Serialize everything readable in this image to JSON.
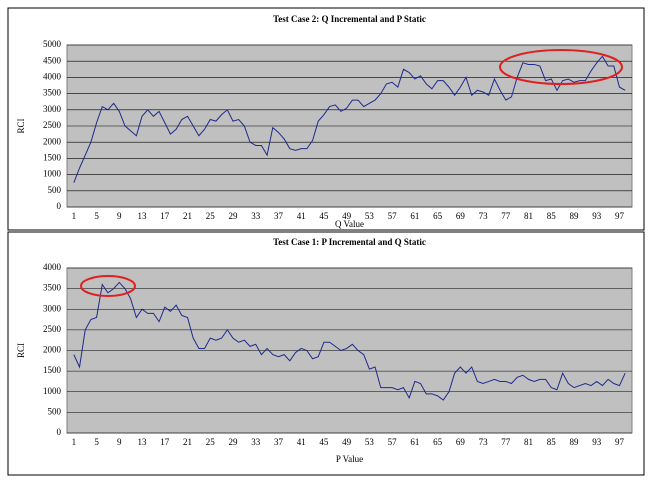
{
  "chart_data": [
    {
      "type": "line",
      "title": "Test Case 2: Q Incremental and P Static",
      "x_label": "Q Value",
      "y_label": "RCI",
      "categories": [
        "1",
        null,
        null,
        null,
        "5",
        null,
        null,
        null,
        "9",
        null,
        null,
        null,
        "13",
        null,
        null,
        null,
        "17",
        null,
        null,
        null,
        "21",
        null,
        null,
        null,
        "25",
        null,
        null,
        null,
        "29",
        null,
        null,
        null,
        "33",
        null,
        null,
        null,
        "37",
        null,
        null,
        null,
        "41",
        null,
        null,
        null,
        "45",
        null,
        null,
        null,
        "49",
        null,
        null,
        null,
        "53",
        null,
        null,
        null,
        "57",
        null,
        null,
        null,
        "61",
        null,
        null,
        null,
        "65",
        null,
        null,
        null,
        "69",
        null,
        null,
        null,
        "73",
        null,
        null,
        null,
        "77",
        null,
        null,
        null,
        "81",
        null,
        null,
        null,
        "85",
        null,
        null,
        null,
        "89",
        null,
        null,
        null,
        "93",
        null,
        null,
        null,
        "97",
        null
      ],
      "series": [
        {
          "color": "#1f2a8c",
          "values": [
            750,
            1200,
            1600,
            2000,
            2600,
            3100,
            3000,
            3200,
            2950,
            2500,
            2350,
            2200,
            2800,
            3000,
            2800,
            2950,
            2600,
            2250,
            2400,
            2700,
            2800,
            2500,
            2200,
            2400,
            2700,
            2650,
            2850,
            3000,
            2650,
            2700,
            2500,
            2000,
            1900,
            1900,
            1600,
            2450,
            2300,
            2100,
            1800,
            1750,
            1800,
            1800,
            2050,
            2650,
            2850,
            3100,
            3150,
            2950,
            3050,
            3300,
            3300,
            3100,
            3200,
            3300,
            3500,
            3800,
            3850,
            3700,
            4250,
            4150,
            3950,
            4050,
            3800,
            3650,
            3900,
            3900,
            3700,
            3450,
            3700,
            4000,
            3450,
            3600,
            3550,
            3450,
            3950,
            3600,
            3300,
            3400,
            4000,
            4450,
            4400,
            4400,
            4350,
            3900,
            3950,
            3600,
            3900,
            3950,
            3850,
            3900,
            3900,
            4200,
            4450,
            4650,
            4350,
            4350,
            3700,
            3600
          ]
        }
      ],
      "ylim": [
        0,
        5000
      ],
      "yticks": [
        0,
        500,
        1000,
        1500,
        2000,
        2500,
        3000,
        3500,
        4000,
        4500,
        5000
      ],
      "grid": true,
      "background": "#c0c0c0"
    },
    {
      "type": "line",
      "title": "Test Case 1: P Incremental and Q Static",
      "x_label": "P Value",
      "y_label": "RCI",
      "categories": [
        "1",
        null,
        null,
        null,
        "5",
        null,
        null,
        null,
        "9",
        null,
        null,
        null,
        "13",
        null,
        null,
        null,
        "17",
        null,
        null,
        null,
        "21",
        null,
        null,
        null,
        "25",
        null,
        null,
        null,
        "29",
        null,
        null,
        null,
        "33",
        null,
        null,
        null,
        "37",
        null,
        null,
        null,
        "41",
        null,
        null,
        null,
        "45",
        null,
        null,
        null,
        "49",
        null,
        null,
        null,
        "53",
        null,
        null,
        null,
        "57",
        null,
        null,
        null,
        "61",
        null,
        null,
        null,
        "65",
        null,
        null,
        null,
        "69",
        null,
        null,
        null,
        "73",
        null,
        null,
        null,
        "77",
        null,
        null,
        null,
        "81",
        null,
        null,
        null,
        "85",
        null,
        null,
        null,
        "89",
        null,
        null,
        null,
        "93",
        null,
        null,
        null,
        "97",
        null
      ],
      "series": [
        {
          "color": "#1f2a8c",
          "values": [
            1900,
            1600,
            2500,
            2750,
            2800,
            3600,
            3400,
            3500,
            3650,
            3500,
            3250,
            2800,
            3000,
            2900,
            2900,
            2700,
            3050,
            2950,
            3100,
            2850,
            2800,
            2300,
            2050,
            2050,
            2300,
            2250,
            2300,
            2500,
            2300,
            2200,
            2250,
            2100,
            2150,
            1900,
            2050,
            1900,
            1850,
            1900,
            1750,
            1950,
            2050,
            2000,
            1800,
            1850,
            2200,
            2200,
            2100,
            2000,
            2050,
            2150,
            2000,
            1900,
            1550,
            1600,
            1100,
            1100,
            1100,
            1050,
            1100,
            850,
            1250,
            1200,
            950,
            950,
            900,
            800,
            1000,
            1450,
            1600,
            1450,
            1600,
            1250,
            1200,
            1250,
            1300,
            1250,
            1250,
            1200,
            1350,
            1400,
            1300,
            1250,
            1300,
            1300,
            1100,
            1050,
            1450,
            1200,
            1100,
            1150,
            1200,
            1150,
            1250,
            1150,
            1300,
            1200,
            1150,
            1450
          ]
        }
      ],
      "ylim": [
        0,
        4000
      ],
      "yticks": [
        0,
        500,
        1000,
        1500,
        2000,
        2500,
        3000,
        3500,
        4000
      ],
      "grid": true,
      "background": "#c0c0c0"
    }
  ]
}
